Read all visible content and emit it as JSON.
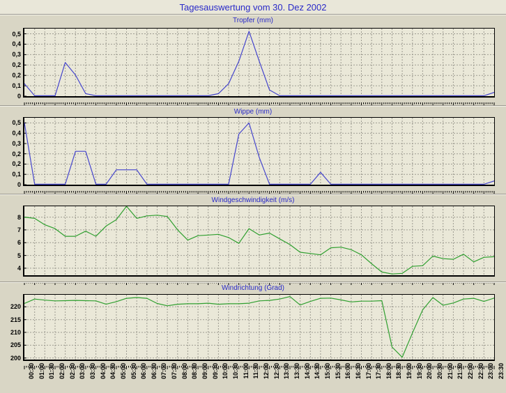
{
  "page": {
    "title": "Tagesauswertung vom 30. Dez 2002"
  },
  "colors": {
    "page_bg": "#d9d6c5",
    "header_bg": "#e9e7d9",
    "plot_bg": "#eae8d8",
    "grid": "#9c9a90",
    "axis": "#000000",
    "title_text": "#2929c8",
    "line_blue": "#4545cd",
    "line_green": "#2f9f2f"
  },
  "x_axis": {
    "labels": [
      "00:30",
      "01:00",
      "01:30",
      "02:00",
      "02:30",
      "03:00",
      "03:30",
      "04:00",
      "04:30",
      "05:00",
      "05:30",
      "06:00",
      "06:30",
      "07:00",
      "07:30",
      "08:00",
      "08:30",
      "09:00",
      "09:30",
      "10:00",
      "10:30",
      "11:00",
      "11:30",
      "12:00",
      "12:30",
      "13:00",
      "13:30",
      "14:00",
      "14:30",
      "15:00",
      "15:30",
      "16:00",
      "16:30",
      "17:00",
      "17:30",
      "18:00",
      "18:30",
      "19:00",
      "19:30",
      "20:00",
      "20:30",
      "21:00",
      "21:30",
      "22:00",
      "22:30",
      "23:00",
      "23:30"
    ],
    "labels_shown_on": "Windrichtung (Grad)"
  },
  "chart_data": [
    {
      "type": "line",
      "title": "Tropfer (mm)",
      "line_color": "#4545cd",
      "y_axis": {
        "ylim": [
          0,
          0.542
        ],
        "grid": [
          {
            "v": 0.5,
            "label": "0,5"
          },
          {
            "v": 0.4167,
            "label": "0,4"
          },
          {
            "v": 0.3333,
            "label": "0,3"
          },
          {
            "v": 0.25,
            "label": "0,2"
          },
          {
            "v": 0.1667,
            "label": "0,2"
          },
          {
            "v": 0.0833,
            "label": "0,1"
          },
          {
            "v": 0,
            "label": "0"
          }
        ]
      },
      "values": [
        0.1,
        0,
        0,
        0,
        0.27,
        0.17,
        0.02,
        0,
        0,
        0,
        0,
        0,
        0,
        0,
        0,
        0,
        0,
        0,
        0,
        0.02,
        0.1,
        0.28,
        0.52,
        0.28,
        0.05,
        0,
        0,
        0,
        0,
        0,
        0,
        0,
        0,
        0,
        0,
        0,
        0,
        0,
        0,
        0,
        0,
        0,
        0,
        0,
        0,
        0,
        0.03
      ]
    },
    {
      "type": "line",
      "title": "Wippe (mm)",
      "line_color": "#4545cd",
      "y_axis": {
        "ylim": [
          0,
          0.542
        ],
        "grid": [
          {
            "v": 0.5,
            "label": "0,5"
          },
          {
            "v": 0.4167,
            "label": "0,4"
          },
          {
            "v": 0.3333,
            "label": "0,3"
          },
          {
            "v": 0.25,
            "label": "0,2"
          },
          {
            "v": 0.1667,
            "label": "0,2"
          },
          {
            "v": 0.0833,
            "label": "0,1"
          },
          {
            "v": 0,
            "label": "0"
          }
        ]
      },
      "values": [
        0.5,
        0,
        0,
        0,
        0,
        0.27,
        0.27,
        0,
        0,
        0.12,
        0.12,
        0.12,
        0,
        0,
        0,
        0,
        0,
        0,
        0,
        0,
        0,
        0.41,
        0.5,
        0.22,
        0,
        0,
        0,
        0,
        0,
        0.1,
        0,
        0,
        0,
        0,
        0,
        0,
        0,
        0,
        0,
        0,
        0,
        0,
        0,
        0,
        0,
        0,
        0.03
      ]
    },
    {
      "type": "line",
      "title": "Windgeschwindigkeit (m/s)",
      "line_color": "#2f9f2f",
      "y_axis": {
        "ylim": [
          3.45,
          8.85
        ],
        "grid": [
          {
            "v": 8,
            "label": "8"
          },
          {
            "v": 7,
            "label": "7"
          },
          {
            "v": 6,
            "label": "6"
          },
          {
            "v": 5,
            "label": "5"
          },
          {
            "v": 4,
            "label": "4"
          }
        ]
      },
      "values": [
        8.0,
        7.9,
        7.4,
        7.1,
        6.5,
        6.5,
        6.9,
        6.5,
        7.3,
        7.8,
        8.85,
        7.9,
        8.1,
        8.15,
        8.05,
        7.0,
        6.2,
        6.55,
        6.6,
        6.65,
        6.4,
        5.95,
        7.1,
        6.6,
        6.75,
        6.3,
        5.85,
        5.25,
        5.15,
        5.05,
        5.6,
        5.65,
        5.45,
        5.05,
        4.35,
        3.7,
        3.55,
        3.6,
        4.15,
        4.2,
        4.95,
        4.75,
        4.7,
        5.1,
        4.5,
        4.85,
        4.9
      ]
    },
    {
      "type": "line",
      "title": "Windrichtung (Grad)",
      "line_color": "#2f9f2f",
      "y_axis": {
        "ylim": [
          199.4,
          224.7
        ],
        "grid": [
          {
            "v": 220,
            "label": "220"
          },
          {
            "v": 215,
            "label": "215"
          },
          {
            "v": 210,
            "label": "210"
          },
          {
            "v": 205,
            "label": "205"
          },
          {
            "v": 200,
            "label": "200"
          }
        ]
      },
      "values": [
        221.3,
        223.0,
        222.6,
        222.3,
        222.4,
        222.5,
        222.4,
        222.3,
        221.0,
        222.0,
        223.3,
        223.6,
        223.3,
        221.3,
        220.4,
        221.0,
        221.2,
        221.2,
        221.4,
        221.0,
        221.2,
        221.2,
        221.4,
        222.3,
        222.5,
        223.0,
        224.0,
        220.7,
        222.1,
        223.3,
        223.4,
        222.7,
        221.9,
        222.2,
        222.2,
        222.4,
        204.3,
        200.3,
        209.8,
        218.8,
        223.6,
        220.6,
        221.5,
        223.0,
        223.3,
        222.1,
        223.4
      ]
    }
  ]
}
